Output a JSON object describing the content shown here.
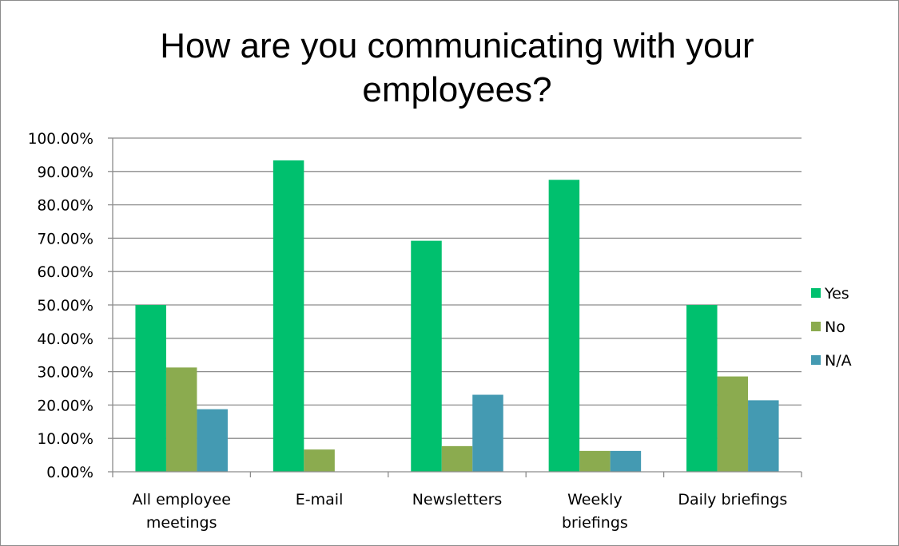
{
  "chart_data": {
    "type": "bar",
    "title": "How are you communicating with your employees?",
    "title_lines": [
      "How are you communicating with your",
      "employees?"
    ],
    "xlabel": "",
    "ylabel": "",
    "categories": [
      "All employee meetings",
      "E-mail",
      "Newsletters",
      "Weekly briefings",
      "Daily briefings"
    ],
    "category_lines": [
      [
        "All employee",
        "meetings"
      ],
      [
        "E-mail"
      ],
      [
        "Newsletters"
      ],
      [
        "Weekly",
        "briefings"
      ],
      [
        "Daily briefings"
      ]
    ],
    "series": [
      {
        "name": "Yes",
        "color": "#00c06e",
        "values": [
          50.0,
          93.33,
          69.23,
          87.5,
          50.0
        ]
      },
      {
        "name": "No",
        "color": "#8bab4f",
        "values": [
          31.25,
          6.67,
          7.69,
          6.25,
          28.57
        ]
      },
      {
        "name": "N/A",
        "color": "#449ab2",
        "values": [
          18.75,
          0.0,
          23.08,
          6.25,
          21.43
        ]
      }
    ],
    "ylim": [
      0,
      100
    ],
    "y_ticks": [
      "0.00%",
      "10.00%",
      "20.00%",
      "30.00%",
      "40.00%",
      "50.00%",
      "60.00%",
      "70.00%",
      "80.00%",
      "90.00%",
      "100.00%"
    ],
    "grid": true,
    "legend_position": "right"
  }
}
